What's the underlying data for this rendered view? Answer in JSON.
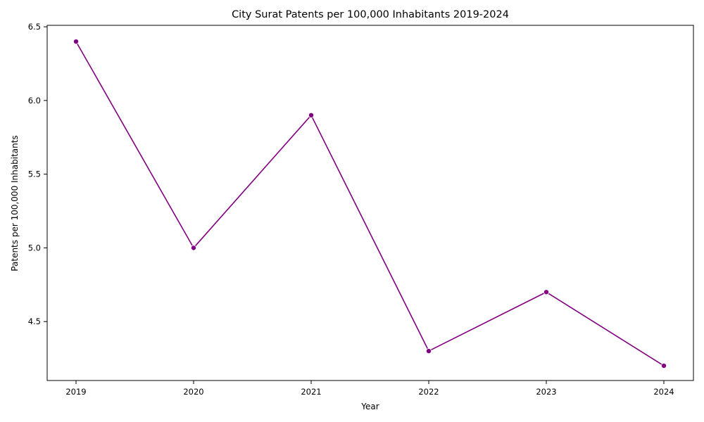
{
  "chart_data": {
    "type": "line",
    "title": "City Surat Patents per 100,000 Inhabitants 2019-2024",
    "xlabel": "Year",
    "ylabel": "Patents per 100,000 Inhabitants",
    "x": [
      "2019",
      "2020",
      "2021",
      "2022",
      "2023",
      "2024"
    ],
    "series": [
      {
        "values": [
          6.4,
          5.0,
          5.9,
          4.3,
          4.7,
          4.2
        ],
        "color": "#800080",
        "marker": "circle"
      }
    ],
    "yticks": [
      "4.5",
      "5.0",
      "5.5",
      "6.0",
      "6.5"
    ],
    "ylim": [
      4.1,
      6.51
    ],
    "grid": false,
    "legend": "none"
  }
}
